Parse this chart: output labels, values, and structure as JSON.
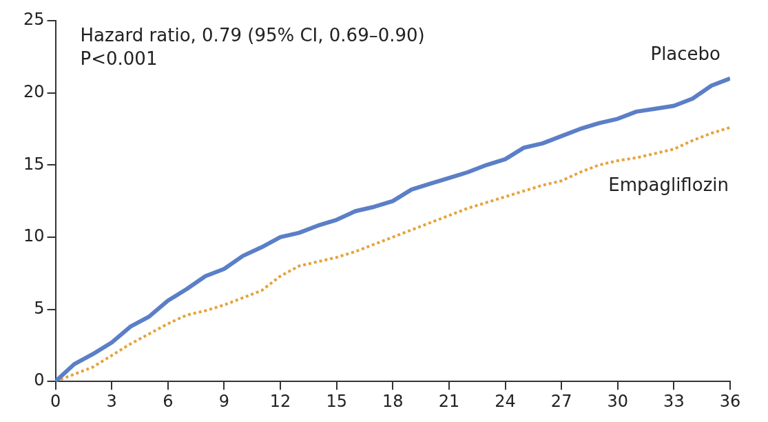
{
  "chart_data": {
    "type": "line",
    "annotations": [
      "Hazard ratio, 0.79 (95% CI, 0.69–0.90)",
      "P<0.001"
    ],
    "x": [
      0,
      1,
      2,
      3,
      4,
      5,
      6,
      7,
      8,
      9,
      10,
      11,
      12,
      13,
      14,
      15,
      16,
      17,
      18,
      19,
      20,
      21,
      22,
      23,
      24,
      25,
      26,
      27,
      28,
      29,
      30,
      31,
      32,
      33,
      34,
      35,
      36
    ],
    "series": [
      {
        "name": "Placebo",
        "color": "#5b7fc7",
        "line_style": "solid",
        "values": [
          0,
          1.2,
          1.9,
          2.7,
          3.8,
          4.5,
          5.6,
          6.4,
          7.3,
          7.8,
          8.7,
          9.3,
          10.0,
          10.3,
          10.8,
          11.2,
          11.8,
          12.1,
          12.5,
          13.3,
          13.7,
          14.1,
          14.5,
          15.0,
          15.4,
          16.2,
          16.5,
          17.0,
          17.5,
          17.9,
          18.2,
          18.7,
          18.9,
          19.1,
          19.6,
          20.5,
          21.0
        ]
      },
      {
        "name": "Empagliflozin",
        "color": "#e6a23c",
        "line_style": "dotted",
        "values": [
          0,
          0.5,
          1.0,
          1.8,
          2.6,
          3.3,
          4.0,
          4.6,
          4.9,
          5.3,
          5.8,
          6.3,
          7.3,
          8.0,
          8.3,
          8.6,
          9.0,
          9.5,
          10.0,
          10.5,
          11.0,
          11.5,
          12.0,
          12.4,
          12.8,
          13.2,
          13.6,
          13.9,
          14.5,
          15.0,
          15.3,
          15.5,
          15.8,
          16.1,
          16.7,
          17.2,
          17.6
        ]
      }
    ],
    "xlim": [
      0,
      36
    ],
    "xticks": [
      0,
      3,
      6,
      9,
      12,
      15,
      18,
      21,
      24,
      27,
      30,
      33,
      36
    ],
    "ylim": [
      0,
      25
    ],
    "yticks": [
      0,
      5,
      10,
      15,
      20,
      25
    ],
    "grid": false,
    "legend": false,
    "marker": "none"
  }
}
